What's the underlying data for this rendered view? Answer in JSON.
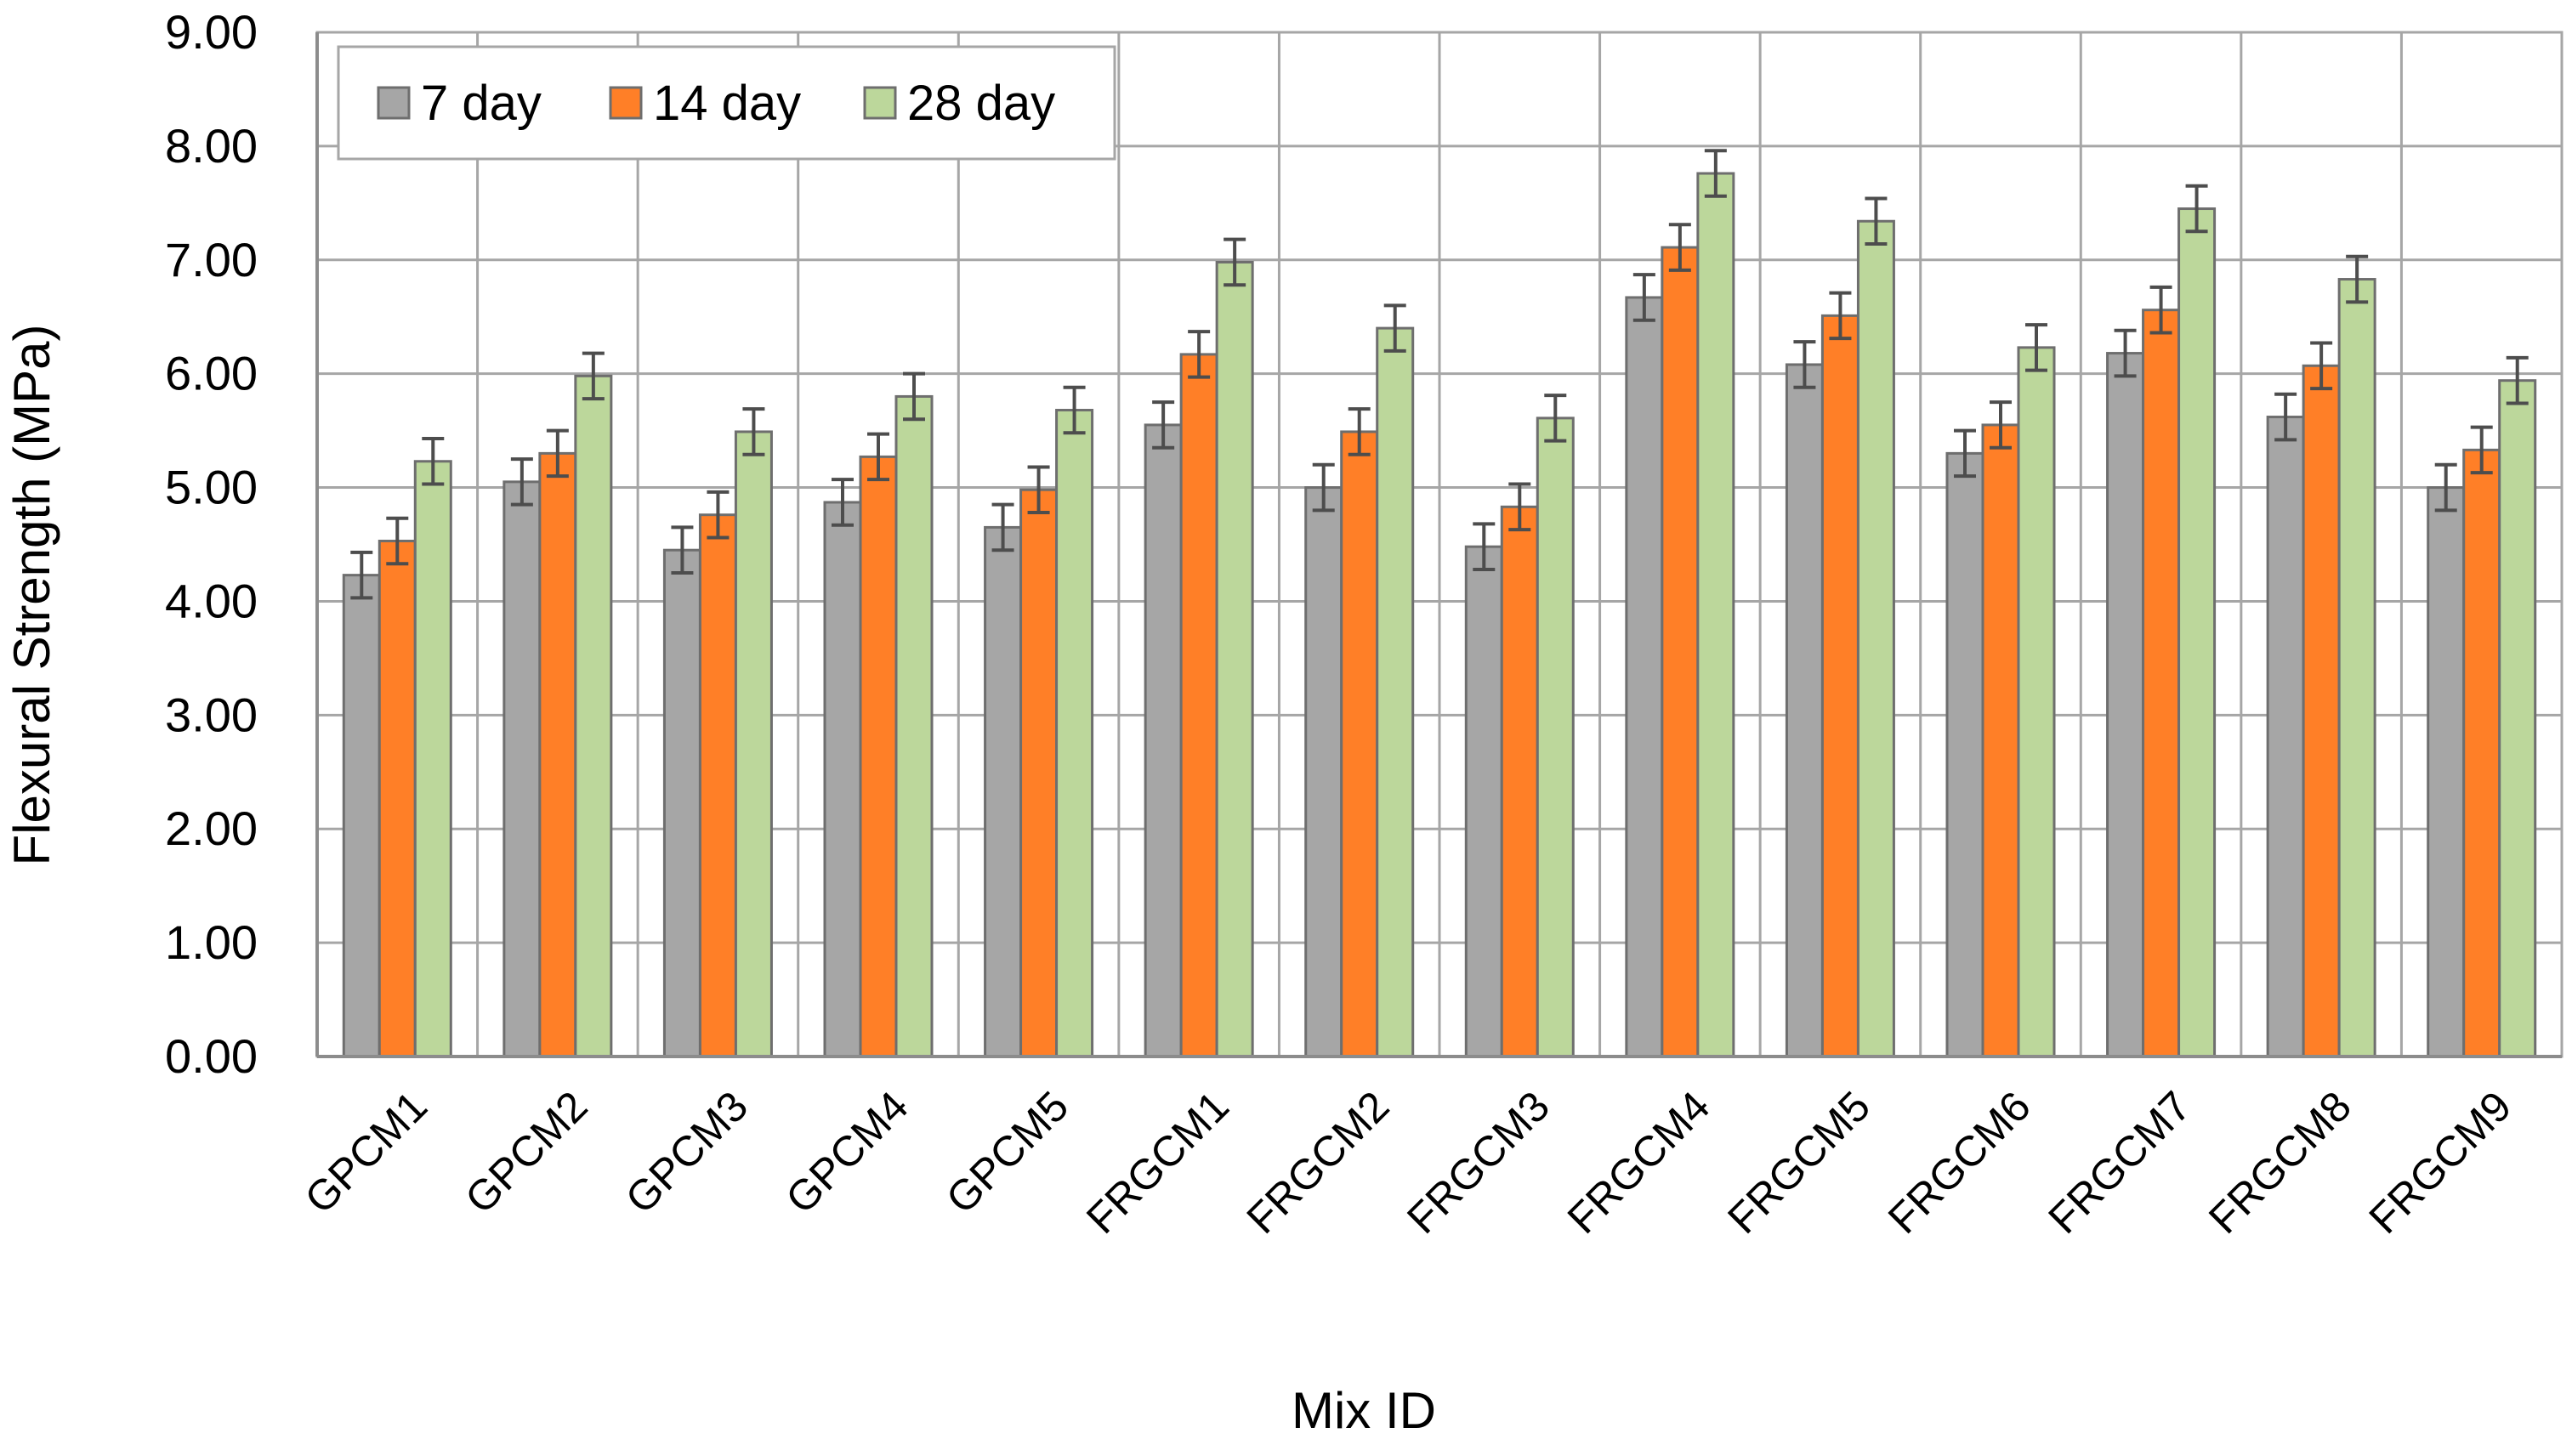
{
  "chart_data": {
    "type": "bar",
    "title": "",
    "xlabel": "Mix ID",
    "ylabel": "Flexural Strength (MPa)",
    "ylim": [
      0,
      9
    ],
    "y_ticks": [
      "0.00",
      "1.00",
      "2.00",
      "3.00",
      "4.00",
      "5.00",
      "6.00",
      "7.00",
      "8.00",
      "9.00"
    ],
    "grid": true,
    "legend_position": "top-left",
    "categories": [
      "GPCM1",
      "GPCM2",
      "GPCM3",
      "GPCM4",
      "GPCM5",
      "FRGCM1",
      "FRGCM2",
      "FRGCM3",
      "FRGCM4",
      "FRGCM5",
      "FRGCM6",
      "FRGCM7",
      "FRGCM8",
      "FRGCM9"
    ],
    "series": [
      {
        "name": "7 day",
        "color": "#a6a6a6",
        "values": [
          4.23,
          5.05,
          4.45,
          4.87,
          4.65,
          5.55,
          5.0,
          4.48,
          6.67,
          6.08,
          5.3,
          6.18,
          5.62,
          5.0
        ],
        "error": [
          0.2,
          0.2,
          0.2,
          0.2,
          0.2,
          0.2,
          0.2,
          0.2,
          0.2,
          0.2,
          0.2,
          0.2,
          0.2,
          0.2
        ]
      },
      {
        "name": "14 day",
        "color": "#ff7f27",
        "values": [
          4.53,
          5.3,
          4.76,
          5.27,
          4.98,
          6.17,
          5.49,
          4.83,
          7.11,
          6.51,
          5.55,
          6.56,
          6.07,
          5.33
        ],
        "error": [
          0.2,
          0.2,
          0.2,
          0.2,
          0.2,
          0.2,
          0.2,
          0.2,
          0.2,
          0.2,
          0.2,
          0.2,
          0.2,
          0.2
        ]
      },
      {
        "name": "28 day",
        "color": "#bcd79b",
        "values": [
          5.23,
          5.98,
          5.49,
          5.8,
          5.68,
          6.98,
          6.4,
          5.61,
          7.76,
          7.34,
          6.23,
          7.45,
          6.83,
          5.94
        ],
        "error": [
          0.2,
          0.2,
          0.2,
          0.2,
          0.2,
          0.2,
          0.2,
          0.2,
          0.2,
          0.2,
          0.2,
          0.2,
          0.2,
          0.2
        ]
      }
    ]
  }
}
